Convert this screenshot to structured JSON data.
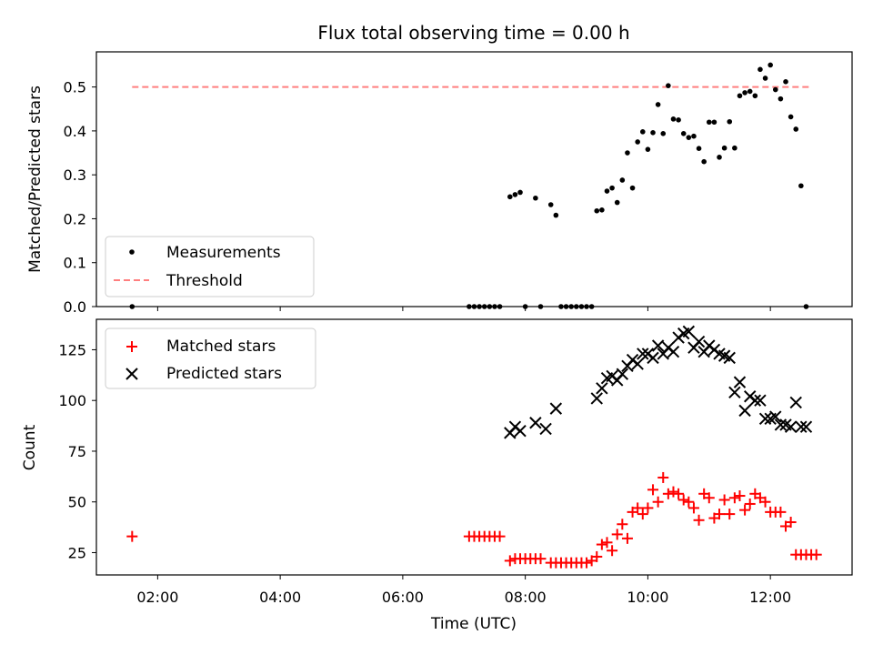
{
  "title": "Flux total observing time = 0.00 h",
  "xlabel": "Time (UTC)",
  "colors": {
    "measurements": "#000000",
    "threshold": "#ff7f7f",
    "matched": "#ff0000",
    "predicted": "#000000"
  },
  "chart_data": [
    {
      "type": "scatter",
      "ylabel": "Matched/Predicted stars",
      "x_ticks": [
        "02:00",
        "04:00",
        "06:00",
        "08:00",
        "10:00",
        "12:00"
      ],
      "xlim": [
        "01:00",
        "13:20"
      ],
      "ylim": [
        0,
        0.58
      ],
      "y_ticks": [
        "0.0",
        "0.1",
        "0.2",
        "0.3",
        "0.4",
        "0.5"
      ],
      "legend": [
        "Measurements",
        "Threshold"
      ],
      "legend_position": "lower-left",
      "threshold": {
        "name": "Threshold",
        "y": 0.5,
        "x": [
          "01:35",
          "12:40"
        ]
      },
      "series": [
        {
          "name": "Measurements",
          "x": [
            "01:35",
            "07:05",
            "07:10",
            "07:15",
            "07:20",
            "07:25",
            "07:30",
            "07:35",
            "07:45",
            "07:50",
            "07:55",
            "08:00",
            "08:10",
            "08:15",
            "08:25",
            "08:30",
            "08:35",
            "08:40",
            "08:45",
            "08:50",
            "08:55",
            "09:00",
            "09:05",
            "09:10",
            "09:15",
            "09:20",
            "09:25",
            "09:30",
            "09:35",
            "09:40",
            "09:45",
            "09:50",
            "09:55",
            "10:00",
            "10:05",
            "10:10",
            "10:15",
            "10:20",
            "10:25",
            "10:30",
            "10:35",
            "10:40",
            "10:45",
            "10:50",
            "10:55",
            "11:00",
            "11:05",
            "11:10",
            "11:15",
            "11:20",
            "11:25",
            "11:30",
            "11:35",
            "11:40",
            "11:45",
            "11:50",
            "11:55",
            "12:00",
            "12:05",
            "12:10",
            "12:15",
            "12:20",
            "12:25",
            "12:30",
            "12:35"
          ],
          "y": [
            0,
            0,
            0,
            0,
            0,
            0,
            0,
            0,
            0.25,
            0.255,
            0.26,
            0,
            0.247,
            0,
            0.232,
            0.208,
            0,
            0,
            0,
            0,
            0,
            0,
            0,
            0.218,
            0.22,
            0.263,
            0.27,
            0.237,
            0.288,
            0.35,
            0.27,
            0.375,
            0.398,
            0.358,
            0.396,
            0.46,
            0.394,
            0.503,
            0.427,
            0.425,
            0.394,
            0.385,
            0.388,
            0.36,
            0.33,
            0.42,
            0.42,
            0.34,
            0.361,
            0.421,
            0.361,
            0.48,
            0.487,
            0.49,
            0.48,
            0.54,
            0.52,
            0.55,
            0.494,
            0.473,
            0.512,
            0.432,
            0.404,
            0.275,
            0
          ]
        }
      ]
    },
    {
      "type": "scatter",
      "ylabel": "Count",
      "x_ticks": [
        "02:00",
        "04:00",
        "06:00",
        "08:00",
        "10:00",
        "12:00"
      ],
      "xlim": [
        "01:00",
        "13:20"
      ],
      "ylim": [
        14,
        140
      ],
      "y_ticks": [
        "25",
        "50",
        "75",
        "100",
        "125"
      ],
      "legend": [
        "Matched stars",
        "Predicted stars"
      ],
      "legend_position": "upper-left",
      "series": [
        {
          "name": "Matched stars",
          "marker": "+",
          "x": [
            "01:35",
            "07:05",
            "07:10",
            "07:15",
            "07:20",
            "07:25",
            "07:30",
            "07:35",
            "07:45",
            "07:50",
            "07:55",
            "08:00",
            "08:05",
            "08:10",
            "08:15",
            "08:25",
            "08:30",
            "08:35",
            "08:40",
            "08:45",
            "08:50",
            "08:55",
            "09:00",
            "09:05",
            "09:10",
            "09:15",
            "09:20",
            "09:25",
            "09:30",
            "09:35",
            "09:40",
            "09:45",
            "09:50",
            "09:55",
            "10:00",
            "10:05",
            "10:10",
            "10:15",
            "10:20",
            "10:25",
            "10:30",
            "10:35",
            "10:40",
            "10:45",
            "10:50",
            "10:55",
            "11:00",
            "11:05",
            "11:10",
            "11:15",
            "11:20",
            "11:25",
            "11:30",
            "11:35",
            "11:40",
            "11:45",
            "11:50",
            "11:55",
            "12:00",
            "12:05",
            "12:10",
            "12:15",
            "12:20",
            "12:25",
            "12:30",
            "12:35",
            "12:40",
            "12:45"
          ],
          "y": [
            33,
            33,
            33,
            33,
            33,
            33,
            33,
            33,
            21,
            22,
            22,
            22,
            22,
            22,
            22,
            20,
            20,
            20,
            20,
            20,
            20,
            20,
            20,
            21,
            23,
            29,
            30,
            26,
            34,
            39,
            32,
            45,
            47,
            44,
            47,
            56,
            50,
            62,
            54,
            55,
            54,
            51,
            50,
            47,
            41,
            54,
            52,
            42,
            44,
            51,
            44,
            52,
            53,
            46,
            49,
            54,
            52,
            50,
            45,
            45,
            45,
            38,
            40,
            24,
            24,
            24,
            24,
            24
          ]
        },
        {
          "name": "Predicted stars",
          "marker": "x",
          "x": [
            "07:45",
            "07:50",
            "07:55",
            "08:10",
            "08:20",
            "08:30",
            "09:10",
            "09:15",
            "09:20",
            "09:25",
            "09:30",
            "09:35",
            "09:40",
            "09:45",
            "09:50",
            "09:55",
            "10:00",
            "10:05",
            "10:10",
            "10:15",
            "10:20",
            "10:25",
            "10:30",
            "10:35",
            "10:40",
            "10:45",
            "10:50",
            "10:55",
            "11:00",
            "11:05",
            "11:10",
            "11:15",
            "11:20",
            "11:25",
            "11:30",
            "11:35",
            "11:40",
            "11:45",
            "11:50",
            "11:55",
            "12:00",
            "12:05",
            "12:10",
            "12:15",
            "12:20",
            "12:25",
            "12:30",
            "12:35"
          ],
          "y": [
            84,
            87,
            85,
            89,
            86,
            96,
            101,
            106,
            111,
            112,
            110,
            113,
            117,
            120,
            118,
            123,
            123,
            121,
            127,
            123,
            126,
            124,
            131,
            133,
            134,
            126,
            129,
            124,
            127,
            125,
            123,
            122,
            121,
            104,
            109,
            95,
            102,
            100,
            100,
            91,
            91,
            92,
            88,
            88,
            87,
            99,
            87,
            87
          ]
        }
      ]
    }
  ]
}
